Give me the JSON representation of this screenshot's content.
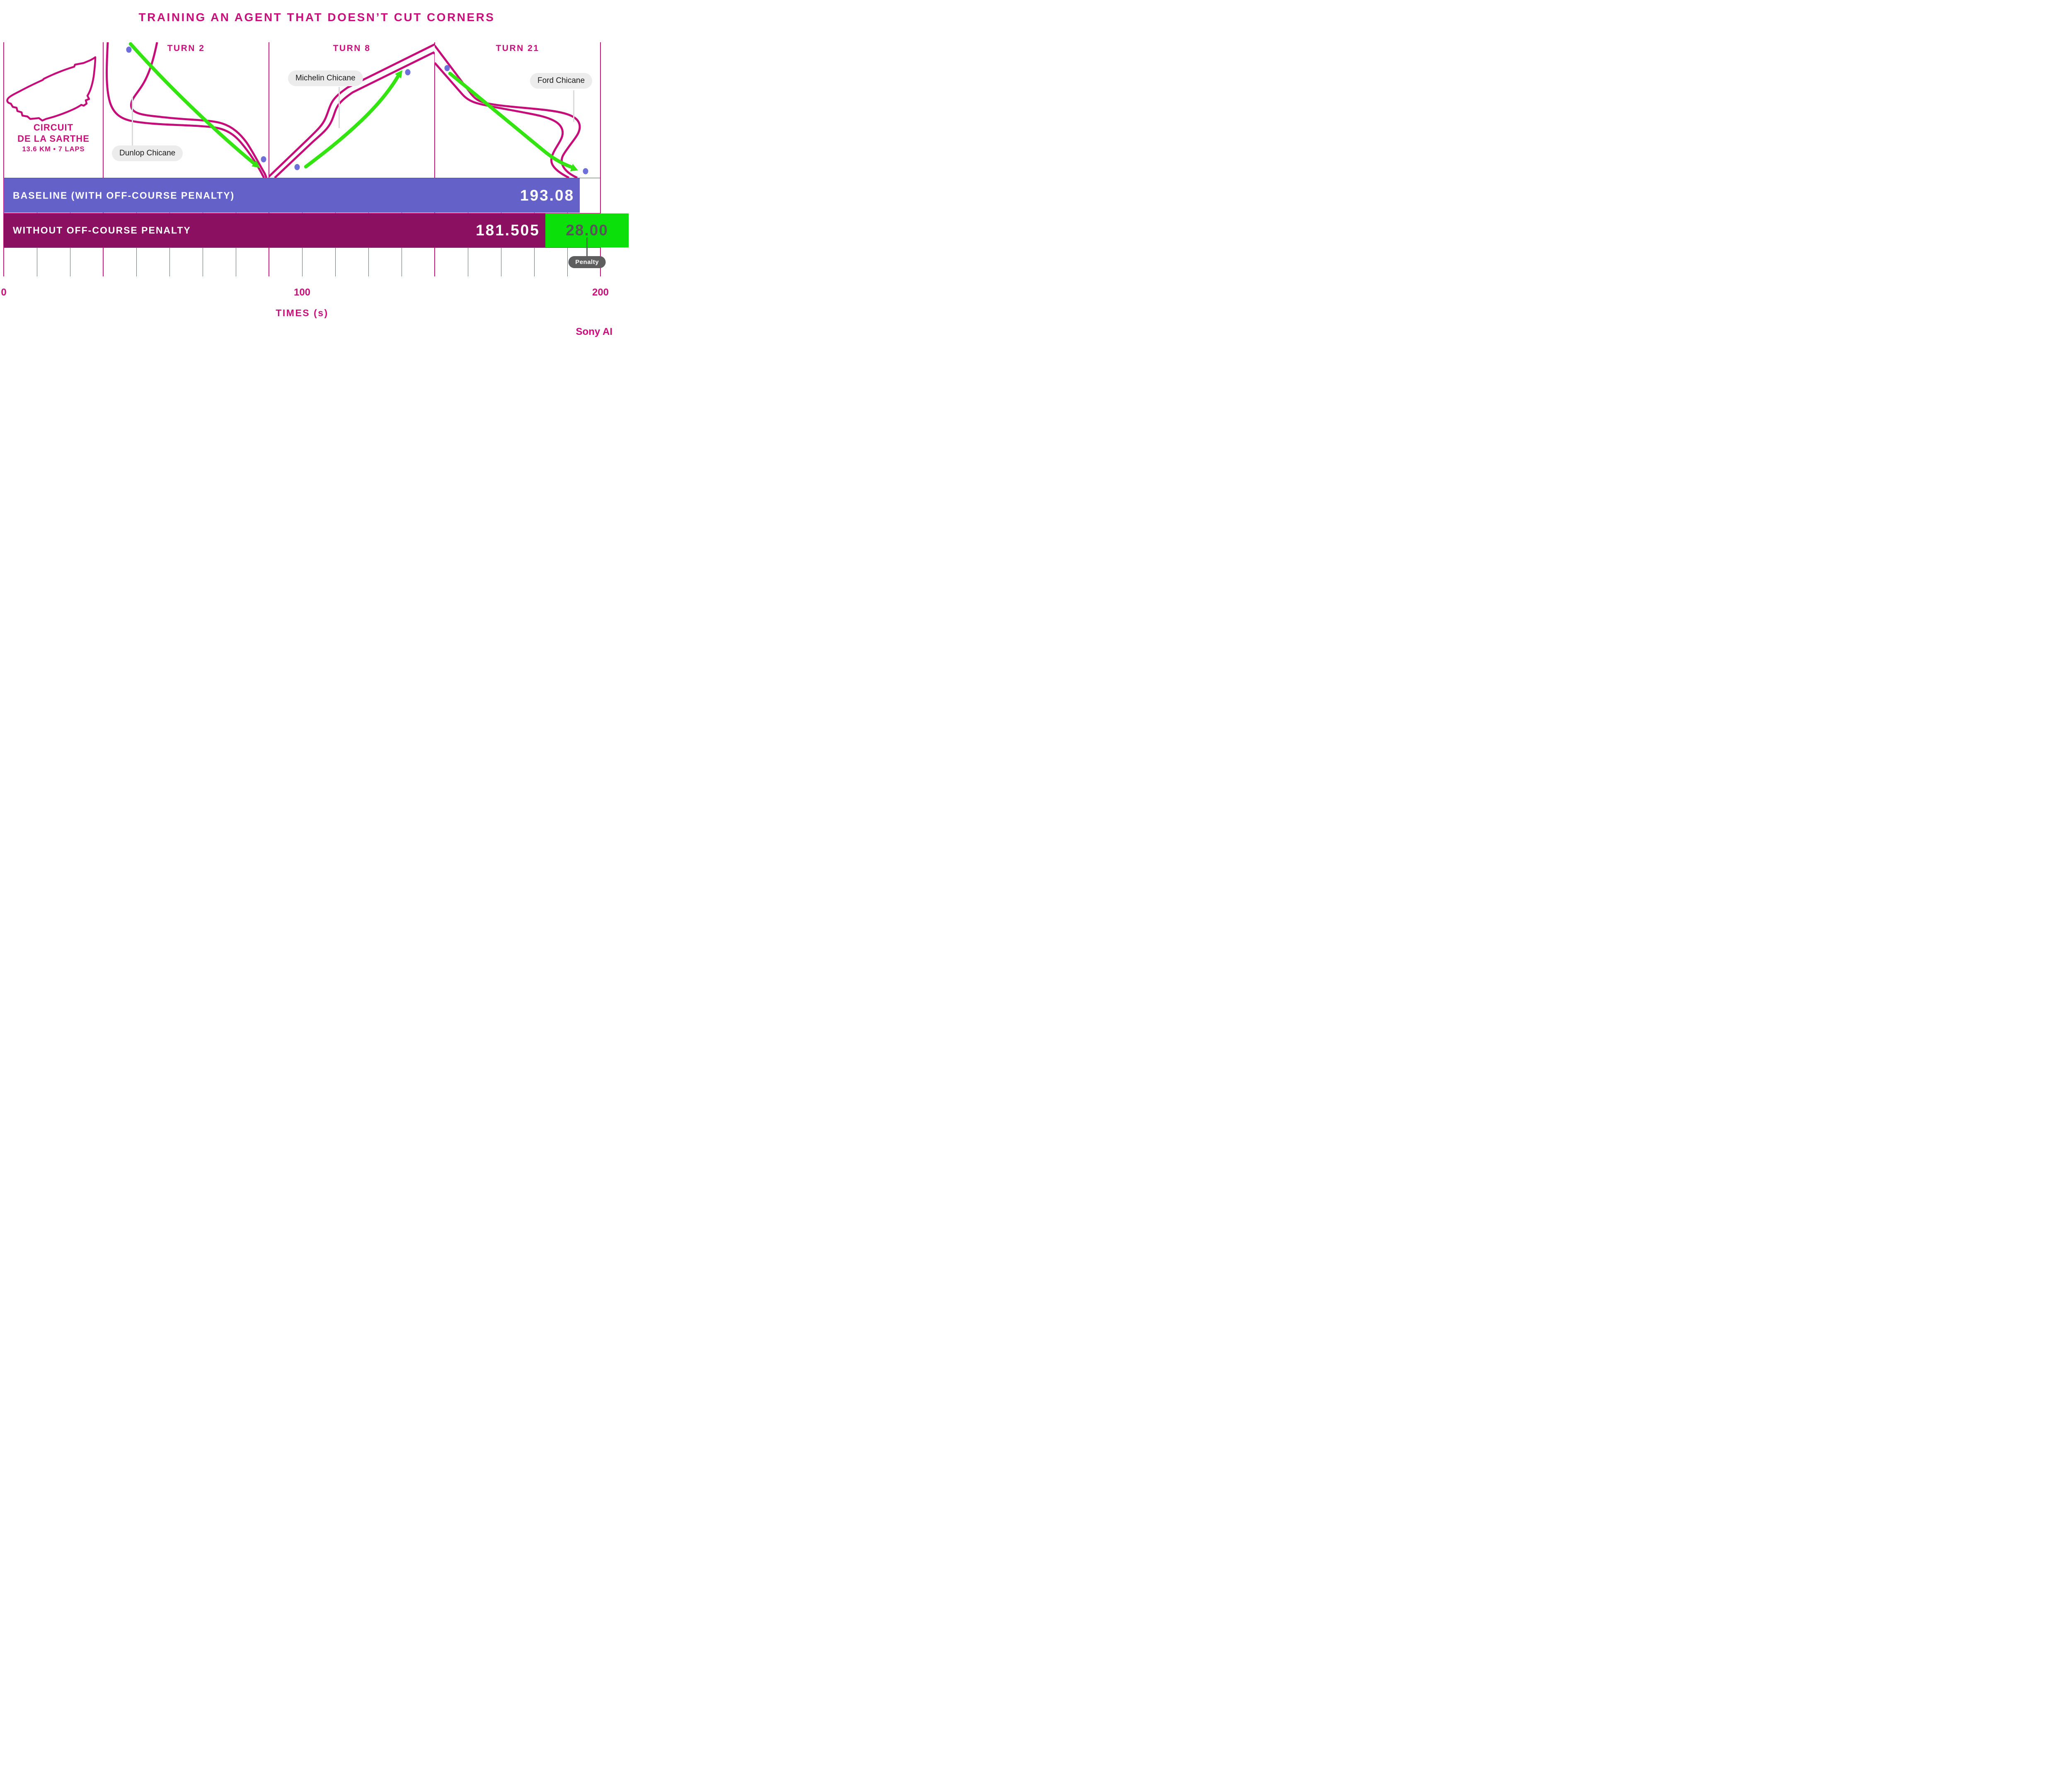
{
  "title": "TRAINING AN AGENT THAT DOESN’T CUT CORNERS",
  "circuit": {
    "line1": "CIRCUIT",
    "line2": "DE LA SARTHE",
    "meta": "13.6 KM • 7 LAPS"
  },
  "turns": [
    {
      "label": "TURN 2",
      "chicane_label": "Dunlop Chicane"
    },
    {
      "label": "TURN 8",
      "chicane_label": "Michelin Chicane"
    },
    {
      "label": "TURN 21",
      "chicane_label": "Ford Chicane"
    }
  ],
  "chart_data": {
    "type": "bar",
    "orientation": "horizontal",
    "title": "TRAINING AN AGENT THAT DOESN’T CUT CORNERS",
    "xlabel": "TIMES (s)",
    "xlim": [
      0,
      200
    ],
    "xticks": [
      {
        "value": 0,
        "label": "0"
      },
      {
        "value": 100,
        "label": "100"
      },
      {
        "value": 200,
        "label": "200"
      }
    ],
    "grid": true,
    "gridline_intervals": 18,
    "major_gridline_indices": [
      0,
      3,
      8,
      13,
      18
    ],
    "legend_position": "none",
    "series": [
      {
        "name": "BASELINE (WITH OFF-COURSE PENALTY)",
        "value": 193.08,
        "value_label": "193.08",
        "color": "#6462C9"
      },
      {
        "name": "WITHOUT OFF-COURSE PENALTY",
        "value": 181.505,
        "value_label": "181.505",
        "color": "#8B1062",
        "penalty": {
          "value": 28.0,
          "value_label": "28.00",
          "label": "Penalty",
          "color": "#0BE00B"
        }
      }
    ]
  },
  "colors": {
    "accent_magenta": "#C8107A",
    "track_magenta": "#C50D79",
    "baseline_bar": "#6462C9",
    "no_penalty_bar": "#8B1062",
    "penalty_green": "#0BE00B",
    "arrow_green": "#33E411",
    "waypoint_blue": "#6E6FD8",
    "chicane_pill_gray": "#ECECEC",
    "penalty_pill_gray": "#5E5E5E"
  },
  "branding": {
    "logo_text": "Sony AI"
  }
}
